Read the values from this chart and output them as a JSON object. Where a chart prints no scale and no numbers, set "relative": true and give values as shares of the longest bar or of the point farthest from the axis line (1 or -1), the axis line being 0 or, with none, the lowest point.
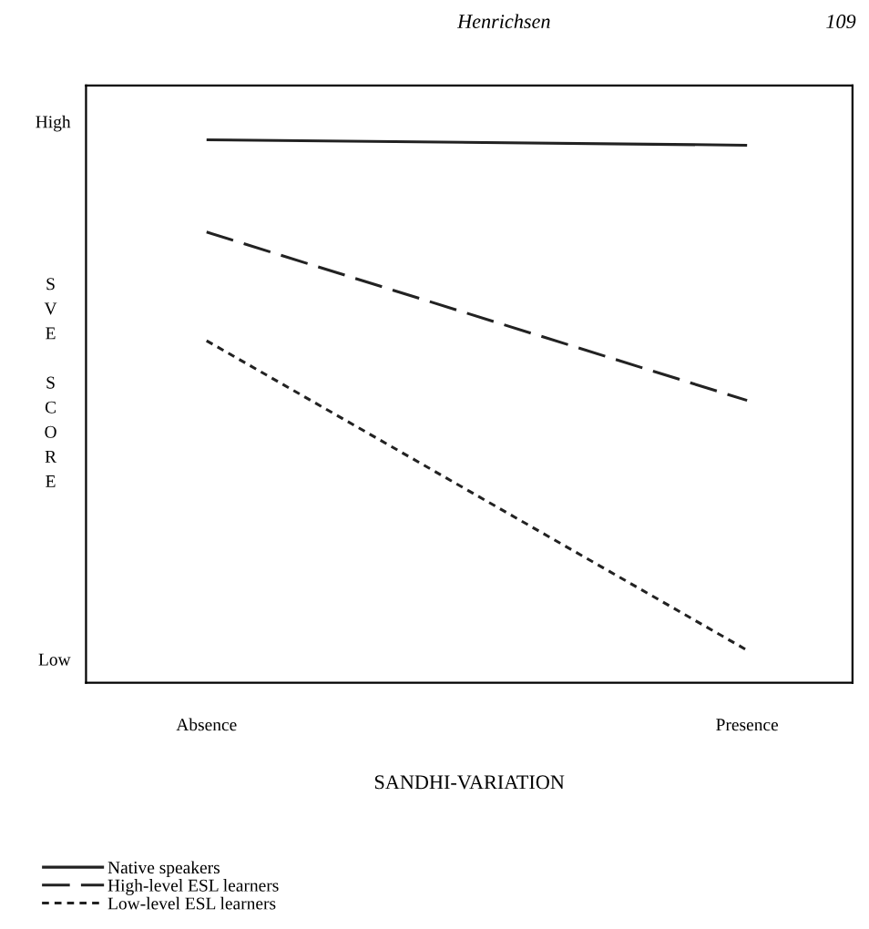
{
  "chart_data": {
    "type": "line",
    "relative": true,
    "xlabel": "SANDHI-VARIATION",
    "ylabel": "SVE SCORE",
    "categories": [
      "Absence",
      "Presence"
    ],
    "series": [
      {
        "name": "Native speakers",
        "color": "#222222",
        "line_style": "solid",
        "values": [
          1,
          0.99
        ]
      },
      {
        "name": "High-level ESL learners",
        "color": "#222222",
        "line_style": "dashed",
        "values": [
          0.83,
          0.52
        ]
      },
      {
        "name": "Low-level ESL learners",
        "color": "#222222",
        "line_style": "dotted",
        "values": [
          0.63,
          0.06
        ]
      }
    ],
    "annotations": [
      "High",
      "Low",
      "Henrichsen",
      "109"
    ],
    "legend": "bottom left",
    "marker": "none"
  }
}
